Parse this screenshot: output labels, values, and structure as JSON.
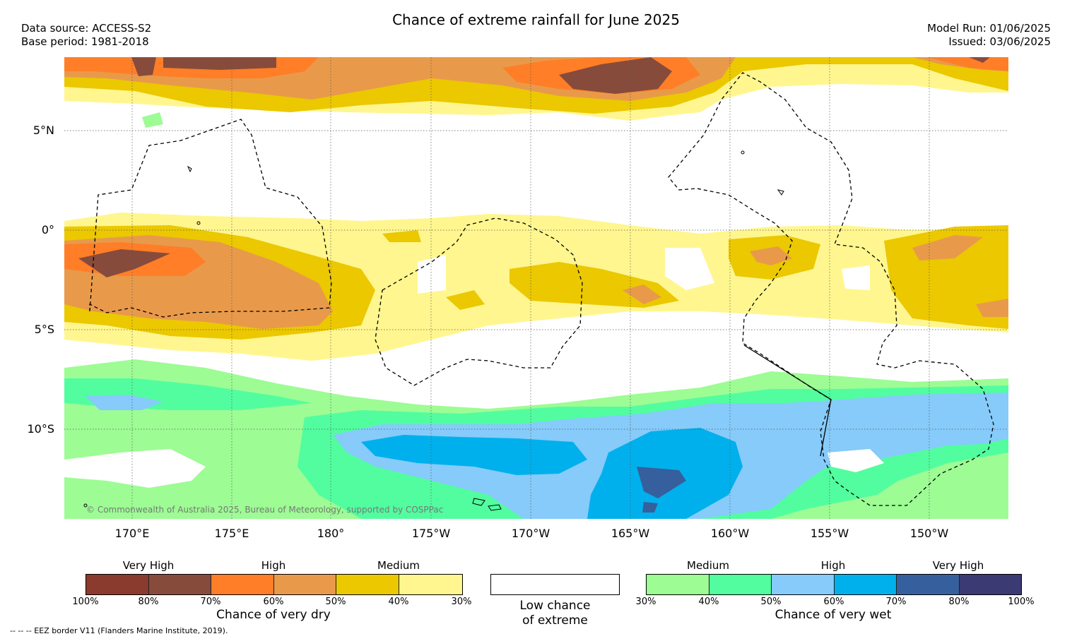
{
  "header": {
    "title": "Chance of extreme rainfall for June 2025",
    "data_source": "Data source: ACCESS-S2",
    "base_period": "Base period: 1981-2018",
    "model_run": "Model Run: 01/06/2025",
    "issued": "Issued: 03/06/2025"
  },
  "axes": {
    "lat_labels": [
      "5°N",
      "0°",
      "5°S",
      "10°S"
    ],
    "lon_labels": [
      "170°E",
      "175°E",
      "180°",
      "175°W",
      "170°W",
      "165°W",
      "160°W",
      "155°W",
      "150°W"
    ]
  },
  "map": {
    "copyright": "© Commonwealth of Australia 2025, Bureau of Meteorology, supported by COSPPac",
    "eez_note": "-- -- -- EEZ border V11 (Flanders Marine Institute, 2019)."
  },
  "legend": {
    "dry": {
      "title": "Chance of very dry",
      "categories": [
        "Very High",
        "High",
        "Medium"
      ],
      "ticks": [
        "100%",
        "80%",
        "70%",
        "60%",
        "50%",
        "40%",
        "30%"
      ],
      "colors": [
        "#8b3a2e",
        "#874b3c",
        "#ff7e27",
        "#e89a4a",
        "#ebc800",
        "#fff68f"
      ]
    },
    "neutral": {
      "title_line1": "Low chance",
      "title_line2": "of extreme",
      "color": "#ffffff"
    },
    "wet": {
      "title": "Chance of very wet",
      "categories": [
        "Medium",
        "High",
        "Very High"
      ],
      "ticks": [
        "30%",
        "40%",
        "50%",
        "60%",
        "70%",
        "80%",
        "100%"
      ],
      "colors": [
        "#9dfc94",
        "#52fd9f",
        "#86cbfa",
        "#00b0ec",
        "#365f9d",
        "#3c3a72"
      ]
    }
  }
}
